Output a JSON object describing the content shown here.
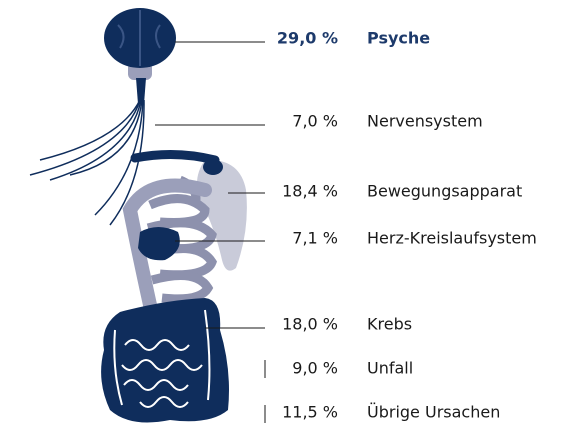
{
  "items": [
    {
      "percent": "29,0 %",
      "label": "Psyche"
    },
    {
      "percent": "7,0 %",
      "label": "Nervensystem"
    },
    {
      "percent": "18,4 %",
      "label": "Bewegungsapparat"
    },
    {
      "percent": "7,1 %",
      "label": "Herz-Kreislaufsystem"
    },
    {
      "percent": "18,0 %",
      "label": "Krebs"
    },
    {
      "percent": "9,0 %",
      "label": "Unfall"
    },
    {
      "percent": "11,5 %",
      "label": "Übrige Ursachen"
    }
  ]
}
